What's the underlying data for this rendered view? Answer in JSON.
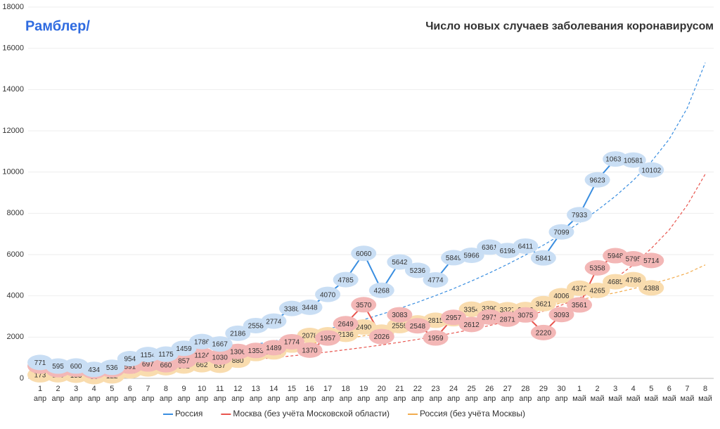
{
  "brand": "Рамблер/",
  "chart_data": {
    "type": "line",
    "title": "Число новых случаев заболевания коронавирусом",
    "categories": [
      [
        "1",
        "апр"
      ],
      [
        "2",
        "апр"
      ],
      [
        "3",
        "апр"
      ],
      [
        "4",
        "апр"
      ],
      [
        "5",
        "апр"
      ],
      [
        "6",
        "апр"
      ],
      [
        "7",
        "апр"
      ],
      [
        "8",
        "апр"
      ],
      [
        "9",
        "апр"
      ],
      [
        "10",
        "апр"
      ],
      [
        "11",
        "апр"
      ],
      [
        "12",
        "апр"
      ],
      [
        "13",
        "апр"
      ],
      [
        "14",
        "апр"
      ],
      [
        "15",
        "апр"
      ],
      [
        "16",
        "апр"
      ],
      [
        "17",
        "апр"
      ],
      [
        "18",
        "апр"
      ],
      [
        "19",
        "апр"
      ],
      [
        "20",
        "апр"
      ],
      [
        "21",
        "апр"
      ],
      [
        "22",
        "апр"
      ],
      [
        "23",
        "апр"
      ],
      [
        "24",
        "апр"
      ],
      [
        "25",
        "апр"
      ],
      [
        "26",
        "апр"
      ],
      [
        "27",
        "апр"
      ],
      [
        "28",
        "апр"
      ],
      [
        "29",
        "апр"
      ],
      [
        "30",
        "апр"
      ],
      [
        "1",
        "май"
      ],
      [
        "2",
        "май"
      ],
      [
        "3",
        "май"
      ],
      [
        "4",
        "май"
      ],
      [
        "5",
        "май"
      ],
      [
        "6",
        "май"
      ],
      [
        "7",
        "май"
      ],
      [
        "8",
        "май"
      ]
    ],
    "ylim": [
      0,
      18000
    ],
    "yticks": [
      0,
      2000,
      4000,
      6000,
      8000,
      10000,
      12000,
      14000,
      16000,
      18000
    ],
    "series": [
      {
        "name": "Россия",
        "color": "#3a8ee0",
        "bubble": "#c9def4",
        "values": [
          771,
          595,
          600,
          434,
          536,
          954,
          1154,
          1175,
          1459,
          1786,
          1667,
          2186,
          2558,
          2774,
          3388,
          3448,
          4070,
          4785,
          6060,
          4268,
          5642,
          5236,
          4774,
          5849,
          5966,
          6361,
          6198,
          6411,
          5841,
          7099,
          7933,
          9623,
          10633,
          10581,
          10102,
          null,
          null,
          null
        ],
        "trend": [
          500,
          550,
          600,
          660,
          730,
          810,
          900,
          1000,
          1110,
          1230,
          1360,
          1500,
          1650,
          1810,
          1990,
          2180,
          2390,
          2610,
          2850,
          3110,
          3390,
          3690,
          4010,
          4350,
          4720,
          5110,
          5530,
          5980,
          6460,
          6980,
          7540,
          8150,
          8830,
          9600,
          10500,
          11600,
          13100,
          15300
        ]
      },
      {
        "name": "Москва (без учёта Московской области)",
        "color": "#e8554e",
        "bubble": "#f3b7b6",
        "values": [
          598,
          419,
          447,
          348,
          414,
          591,
          697,
          660,
          857,
          1124,
          1030,
          1306,
          1353,
          1489,
          1774,
          1370,
          1957,
          2649,
          3570,
          2026,
          3083,
          2548,
          1959,
          2957,
          2612,
          2971,
          2871,
          3075,
          2220,
          3093,
          3561,
          5358,
          5948,
          5795,
          5714,
          null,
          null,
          null
        ],
        "trend": [
          300,
          330,
          360,
          400,
          440,
          480,
          530,
          580,
          640,
          700,
          770,
          840,
          920,
          1000,
          1090,
          1180,
          1280,
          1390,
          1500,
          1620,
          1750,
          1890,
          2040,
          2200,
          2370,
          2560,
          2770,
          3000,
          3260,
          3550,
          3900,
          4320,
          4850,
          5500,
          6300,
          7200,
          8400,
          9900
        ]
      },
      {
        "name": "Россия (без учёта Москвы)",
        "color": "#f2ac4e",
        "bubble": "#f9dcae",
        "values": [
          173,
          176,
          153,
          86,
          122,
          363,
          457,
          515,
          602,
          662,
          637,
          880,
          1205,
          1285,
          1614,
          2078,
          2113,
          2136,
          2490,
          2242,
          2559,
          2688,
          2815,
          2892,
          3354,
          3390,
          3327,
          3336,
          3621,
          4006,
          4372,
          4265,
          4685,
          4786,
          4388,
          null,
          null,
          null
        ],
        "trend": [
          150,
          230,
          310,
          400,
          490,
          580,
          680,
          780,
          880,
          990,
          1100,
          1210,
          1320,
          1440,
          1560,
          1680,
          1800,
          1930,
          2060,
          2190,
          2320,
          2460,
          2600,
          2740,
          2880,
          3030,
          3180,
          3330,
          3490,
          3650,
          3810,
          3980,
          4150,
          4350,
          4580,
          4820,
          5100,
          5500
        ]
      }
    ]
  }
}
